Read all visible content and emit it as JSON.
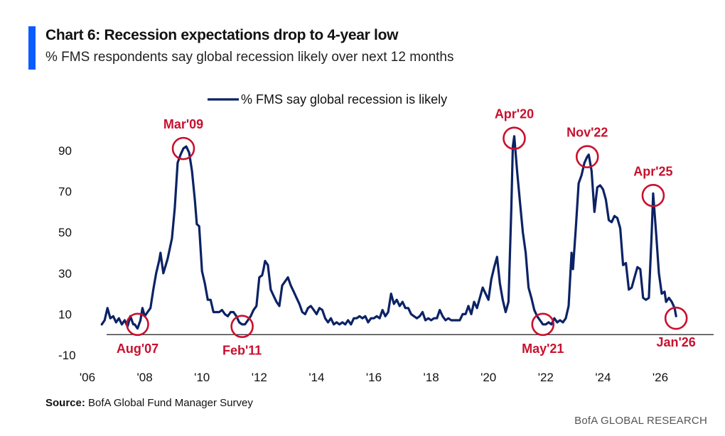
{
  "header": {
    "title": "Chart 6: Recession expectations drop to 4-year low",
    "subtitle": "% FMS respondents say global recession likely over next 12 months"
  },
  "footer": {
    "source_label": "Source:",
    "source_text": "BofA Global Fund Manager Survey",
    "brand": "BofA GLOBAL RESEARCH"
  },
  "colors": {
    "line": "#0b2265",
    "annotation": "#c8102e",
    "accent": "#0b5cff"
  },
  "chart_data": {
    "type": "line",
    "title": "Chart 6: Recession expectations drop to 4-year low",
    "xlabel": "",
    "ylabel": "",
    "xlim": [
      2006.0,
      2027.0
    ],
    "ylim": [
      -10,
      100
    ],
    "yticks": [
      -10,
      10,
      30,
      50,
      70,
      90
    ],
    "xticks": [
      {
        "value": 2006,
        "label": "'06"
      },
      {
        "value": 2008,
        "label": "'08"
      },
      {
        "value": 2010,
        "label": "'10"
      },
      {
        "value": 2012,
        "label": "'12"
      },
      {
        "value": 2014,
        "label": "'14"
      },
      {
        "value": 2016,
        "label": "'16"
      },
      {
        "value": 2018,
        "label": "'18"
      },
      {
        "value": 2020,
        "label": "'20"
      },
      {
        "value": 2022,
        "label": "'22"
      },
      {
        "value": 2024,
        "label": "'24"
      },
      {
        "value": 2026,
        "label": "'26"
      }
    ],
    "legend": {
      "label": "% FMS say global recession is likely",
      "position": "top-center"
    },
    "series": [
      {
        "name": "% FMS say global recession is likely",
        "points": [
          [
            2006.5,
            5
          ],
          [
            2006.6,
            7
          ],
          [
            2006.7,
            13
          ],
          [
            2006.8,
            8
          ],
          [
            2006.9,
            9
          ],
          [
            2007.0,
            6
          ],
          [
            2007.1,
            8
          ],
          [
            2007.2,
            5
          ],
          [
            2007.3,
            7
          ],
          [
            2007.4,
            4
          ],
          [
            2007.5,
            9
          ],
          [
            2007.6,
            5
          ],
          [
            2007.65,
            5
          ],
          [
            2007.75,
            3
          ],
          [
            2007.85,
            7
          ],
          [
            2007.92,
            13
          ],
          [
            2008.0,
            9
          ],
          [
            2008.1,
            11
          ],
          [
            2008.2,
            13
          ],
          [
            2008.3,
            22
          ],
          [
            2008.4,
            30
          ],
          [
            2008.5,
            36
          ],
          [
            2008.55,
            40
          ],
          [
            2008.65,
            30
          ],
          [
            2008.8,
            37
          ],
          [
            2008.95,
            47
          ],
          [
            2009.05,
            62
          ],
          [
            2009.15,
            84
          ],
          [
            2009.25,
            88
          ],
          [
            2009.35,
            91
          ],
          [
            2009.45,
            92
          ],
          [
            2009.55,
            89
          ],
          [
            2009.65,
            80
          ],
          [
            2009.75,
            66
          ],
          [
            2009.82,
            54
          ],
          [
            2009.9,
            53
          ],
          [
            2010.0,
            31
          ],
          [
            2010.1,
            25
          ],
          [
            2010.2,
            17
          ],
          [
            2010.3,
            17
          ],
          [
            2010.4,
            11
          ],
          [
            2010.5,
            11
          ],
          [
            2010.6,
            11
          ],
          [
            2010.7,
            12
          ],
          [
            2010.8,
            10
          ],
          [
            2010.9,
            9
          ],
          [
            2011.0,
            11
          ],
          [
            2011.1,
            11
          ],
          [
            2011.2,
            9
          ],
          [
            2011.3,
            6
          ],
          [
            2011.4,
            5
          ],
          [
            2011.5,
            5
          ],
          [
            2011.6,
            7
          ],
          [
            2011.7,
            9
          ],
          [
            2011.8,
            12
          ],
          [
            2011.9,
            14
          ],
          [
            2012.0,
            28
          ],
          [
            2012.1,
            29
          ],
          [
            2012.15,
            32
          ],
          [
            2012.2,
            36
          ],
          [
            2012.3,
            34
          ],
          [
            2012.4,
            22
          ],
          [
            2012.5,
            19
          ],
          [
            2012.6,
            16
          ],
          [
            2012.7,
            14
          ],
          [
            2012.8,
            24
          ],
          [
            2012.9,
            26
          ],
          [
            2013.0,
            28
          ],
          [
            2013.1,
            24
          ],
          [
            2013.2,
            21
          ],
          [
            2013.3,
            18
          ],
          [
            2013.4,
            15
          ],
          [
            2013.5,
            11
          ],
          [
            2013.6,
            10
          ],
          [
            2013.7,
            13
          ],
          [
            2013.8,
            14
          ],
          [
            2013.9,
            12
          ],
          [
            2014.0,
            10
          ],
          [
            2014.1,
            13
          ],
          [
            2014.2,
            12
          ],
          [
            2014.3,
            8
          ],
          [
            2014.4,
            6
          ],
          [
            2014.5,
            8
          ],
          [
            2014.6,
            5
          ],
          [
            2014.7,
            6
          ],
          [
            2014.8,
            5
          ],
          [
            2014.9,
            6
          ],
          [
            2015.0,
            5
          ],
          [
            2015.1,
            7
          ],
          [
            2015.2,
            5
          ],
          [
            2015.3,
            8
          ],
          [
            2015.4,
            8
          ],
          [
            2015.5,
            9
          ],
          [
            2015.6,
            8
          ],
          [
            2015.7,
            9
          ],
          [
            2015.8,
            6
          ],
          [
            2015.9,
            8
          ],
          [
            2016.0,
            8
          ],
          [
            2016.1,
            9
          ],
          [
            2016.2,
            8
          ],
          [
            2016.3,
            12
          ],
          [
            2016.4,
            9
          ],
          [
            2016.5,
            11
          ],
          [
            2016.6,
            20
          ],
          [
            2016.7,
            15
          ],
          [
            2016.8,
            17
          ],
          [
            2016.9,
            14
          ],
          [
            2017.0,
            16
          ],
          [
            2017.1,
            13
          ],
          [
            2017.2,
            13
          ],
          [
            2017.3,
            10
          ],
          [
            2017.4,
            9
          ],
          [
            2017.5,
            8
          ],
          [
            2017.6,
            9
          ],
          [
            2017.7,
            11
          ],
          [
            2017.8,
            7
          ],
          [
            2017.9,
            8
          ],
          [
            2018.0,
            7
          ],
          [
            2018.1,
            8
          ],
          [
            2018.2,
            8
          ],
          [
            2018.3,
            12
          ],
          [
            2018.4,
            9
          ],
          [
            2018.5,
            7
          ],
          [
            2018.6,
            8
          ],
          [
            2018.7,
            7
          ],
          [
            2018.8,
            7
          ],
          [
            2018.9,
            7
          ],
          [
            2019.0,
            7
          ],
          [
            2019.1,
            10
          ],
          [
            2019.2,
            10
          ],
          [
            2019.3,
            14
          ],
          [
            2019.4,
            10
          ],
          [
            2019.5,
            16
          ],
          [
            2019.6,
            13
          ],
          [
            2019.7,
            18
          ],
          [
            2019.8,
            23
          ],
          [
            2019.9,
            20
          ],
          [
            2020.0,
            17
          ],
          [
            2020.1,
            27
          ],
          [
            2020.2,
            33
          ],
          [
            2020.3,
            38
          ],
          [
            2020.4,
            25
          ],
          [
            2020.5,
            17
          ],
          [
            2020.6,
            11
          ],
          [
            2020.7,
            16
          ],
          [
            2020.8,
            62
          ],
          [
            2020.85,
            92
          ],
          [
            2020.9,
            97
          ],
          [
            2021.0,
            80
          ],
          [
            2021.1,
            65
          ],
          [
            2021.2,
            50
          ],
          [
            2021.3,
            40
          ],
          [
            2021.4,
            23
          ],
          [
            2021.5,
            18
          ],
          [
            2021.6,
            12
          ],
          [
            2021.7,
            9
          ],
          [
            2021.8,
            7
          ],
          [
            2021.9,
            5
          ],
          [
            2022.0,
            5
          ],
          [
            2022.1,
            6
          ],
          [
            2022.2,
            5
          ],
          [
            2022.3,
            8
          ],
          [
            2022.4,
            6
          ],
          [
            2022.5,
            7
          ],
          [
            2022.6,
            6
          ],
          [
            2022.7,
            8
          ],
          [
            2022.8,
            14
          ],
          [
            2022.9,
            40
          ],
          [
            2022.95,
            32
          ],
          [
            2023.05,
            52
          ],
          [
            2023.15,
            74
          ],
          [
            2023.25,
            78
          ],
          [
            2023.35,
            84
          ],
          [
            2023.45,
            87
          ],
          [
            2023.5,
            88
          ],
          [
            2023.6,
            80
          ],
          [
            2023.7,
            60
          ],
          [
            2023.8,
            72
          ],
          [
            2023.9,
            73
          ],
          [
            2024.0,
            71
          ],
          [
            2024.1,
            66
          ],
          [
            2024.2,
            56
          ],
          [
            2024.3,
            55
          ],
          [
            2024.4,
            58
          ],
          [
            2024.5,
            57
          ],
          [
            2024.6,
            52
          ],
          [
            2024.7,
            34
          ],
          [
            2024.8,
            35
          ],
          [
            2024.9,
            22
          ],
          [
            2025.0,
            23
          ],
          [
            2025.1,
            28
          ],
          [
            2025.2,
            33
          ],
          [
            2025.3,
            32
          ],
          [
            2025.4,
            18
          ],
          [
            2025.5,
            17
          ],
          [
            2025.6,
            18
          ],
          [
            2025.7,
            50
          ],
          [
            2025.75,
            69
          ],
          [
            2025.85,
            50
          ],
          [
            2025.95,
            30
          ],
          [
            2026.05,
            20
          ],
          [
            2026.15,
            21
          ],
          [
            2026.2,
            16
          ],
          [
            2026.3,
            18
          ],
          [
            2026.4,
            16
          ],
          [
            2026.5,
            13
          ],
          [
            2026.55,
            9
          ]
        ]
      }
    ],
    "annotations": [
      {
        "label": "Mar'09",
        "x": 2009.35,
        "y": 91,
        "label_side": "above"
      },
      {
        "label": "Aug'07",
        "x": 2007.75,
        "y": 5,
        "label_side": "below"
      },
      {
        "label": "Feb'11",
        "x": 2011.4,
        "y": 4,
        "label_side": "below"
      },
      {
        "label": "Apr'20",
        "x": 2020.9,
        "y": 96,
        "label_side": "above"
      },
      {
        "label": "May'21",
        "x": 2021.9,
        "y": 5,
        "label_side": "below"
      },
      {
        "label": "Nov'22",
        "x": 2023.45,
        "y": 87,
        "label_side": "above"
      },
      {
        "label": "Apr'25",
        "x": 2025.75,
        "y": 68,
        "label_side": "above"
      },
      {
        "label": "Jan'26",
        "x": 2026.55,
        "y": 8,
        "label_side": "below"
      }
    ]
  }
}
